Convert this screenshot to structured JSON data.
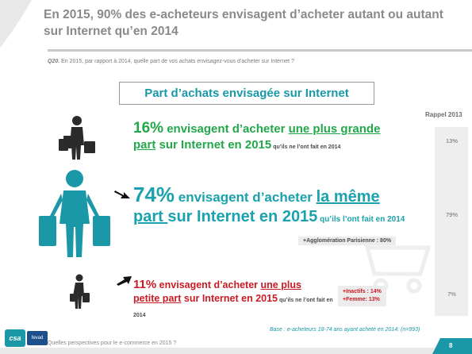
{
  "title": "En 2015, 90% des e-acheteurs envisagent d’acheter autant ou autant sur Internet qu’en 2014",
  "question_num": "Q20.",
  "question": " En 2015, par rapport à 2014, quelle part de vos achats envisagez-vous d’acheter sur Internet ?",
  "box_title": "Part d’achats envisagée sur Internet",
  "rappel_header": "Rappel 2013",
  "rows": [
    {
      "pct": "16%",
      "t1": " envisagent d’acheter ",
      "t2": "une plus grande",
      "t3": "part",
      "t4": " sur Internet en 2015",
      "t5": " qu’ils ne l’ont fait en 2014",
      "rappel": "13%"
    },
    {
      "pct": "74%",
      "t1": " envisagent d’acheter ",
      "t2": "la même",
      "t3": "part ",
      "t4": "sur Internet en 2015",
      "t5": " qu’ils l’ont fait en 2014",
      "tag": "+Agglomération Parisienne : 80%",
      "rappel": "79%"
    },
    {
      "pct": "11%",
      "t1": " envisagent d’acheter ",
      "t2": "une plus",
      "t3": "petite part",
      "t4": " sur Internet en 2015",
      "t5": " qu’ils ne l’ont fait en 2014",
      "tag1": "+Inactifs : 14%",
      "tag2": "+Femme: 13%",
      "rappel": "7%"
    }
  ],
  "base": "Base : e-acheteurs 18-74 ans ayant acheté en 2014: (n=993)",
  "footer": "Quelles perspectives pour le e-commerce en 2015 ?",
  "page": "8",
  "logo_csa": "csa",
  "logo2": "fevad",
  "colors": {
    "accent": "#1a98a8",
    "green": "#22a84a",
    "teal": "#1aa2ae",
    "red": "#c91b24"
  }
}
